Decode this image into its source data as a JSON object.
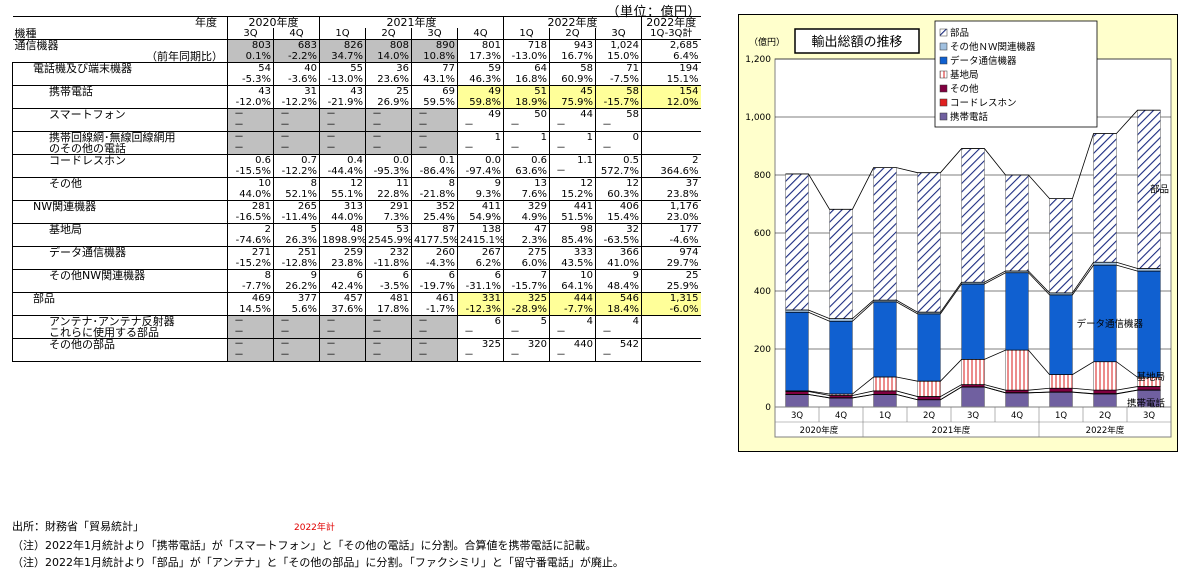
{
  "table": {
    "unit": "（単位：億円）",
    "header_year_label": "年度",
    "header_item_label": "機種",
    "years": [
      {
        "label": "2020年度",
        "span": 2
      },
      {
        "label": "2021年度",
        "span": 4
      },
      {
        "label": "2022年度",
        "span": 3
      },
      {
        "label": "2022年度",
        "span": 1
      }
    ],
    "quarters": [
      "3Q",
      "4Q",
      "1Q",
      "2Q",
      "3Q",
      "4Q",
      "1Q",
      "2Q",
      "3Q",
      "1Q-3Q計"
    ],
    "rows": [
      {
        "indent": 0,
        "label": "通信機器",
        "label2": "（前年同期比）",
        "values": [
          "803",
          "683",
          "826",
          "808",
          "890",
          "801",
          "718",
          "943",
          "1,024",
          "2,685"
        ],
        "yoy": [
          "0.1%",
          "-2.2%",
          "34.7%",
          "14.0%",
          "10.8%",
          "17.3%",
          "-13.0%",
          "16.7%",
          "15.0%",
          "6.4%"
        ],
        "grey": [
          1,
          1,
          1,
          1,
          1,
          0,
          0,
          0,
          0,
          0
        ],
        "yel": [
          0,
          0,
          0,
          0,
          0,
          0,
          0,
          0,
          0,
          0
        ],
        "top": false
      },
      {
        "indent": 1,
        "label": "電話機及び端末機器",
        "label2": "",
        "values": [
          "54",
          "40",
          "55",
          "36",
          "77",
          "59",
          "64",
          "58",
          "71",
          "194"
        ],
        "yoy": [
          "-5.3%",
          "-3.6%",
          "-13.0%",
          "23.6%",
          "43.1%",
          "46.3%",
          "16.8%",
          "60.9%",
          "-7.5%",
          "15.1%"
        ],
        "grey": [
          0,
          0,
          0,
          0,
          0,
          0,
          0,
          0,
          0,
          0
        ],
        "yel": [
          0,
          0,
          0,
          0,
          0,
          0,
          0,
          0,
          0,
          0
        ],
        "top": true
      },
      {
        "indent": 2,
        "label": "携帯電話",
        "label2": "",
        "values": [
          "43",
          "31",
          "43",
          "25",
          "69",
          "49",
          "51",
          "45",
          "58",
          "154"
        ],
        "yoy": [
          "-12.0%",
          "-12.2%",
          "-21.9%",
          "26.9%",
          "59.5%",
          "59.8%",
          "18.9%",
          "75.9%",
          "-15.7%",
          "12.0%"
        ],
        "grey": [
          0,
          0,
          0,
          0,
          0,
          0,
          0,
          0,
          0,
          0
        ],
        "yel": [
          0,
          0,
          0,
          0,
          0,
          1,
          1,
          1,
          1,
          1
        ],
        "top": true
      },
      {
        "indent": 2,
        "label": "スマートフォン",
        "label2": "",
        "values": [
          "－",
          "－",
          "－",
          "－",
          "－",
          "49",
          "50",
          "44",
          "58",
          ""
        ],
        "yoy": [
          "－",
          "－",
          "－",
          "－",
          "－",
          "－",
          "－",
          "－",
          "－",
          ""
        ],
        "grey": [
          1,
          1,
          1,
          1,
          1,
          0,
          0,
          0,
          0,
          0
        ],
        "yel": [
          0,
          0,
          0,
          0,
          0,
          0,
          0,
          0,
          0,
          0
        ],
        "top": true
      },
      {
        "indent": 2,
        "label": "携帯回線網･無線回線網用",
        "label2": "のその他の電話",
        "values": [
          "－",
          "－",
          "－",
          "－",
          "－",
          "1",
          "1",
          "1",
          "0",
          ""
        ],
        "yoy": [
          "－",
          "－",
          "－",
          "－",
          "－",
          "－",
          "－",
          "－",
          "－",
          ""
        ],
        "grey": [
          1,
          1,
          1,
          1,
          1,
          0,
          0,
          0,
          0,
          0
        ],
        "yel": [
          0,
          0,
          0,
          0,
          0,
          0,
          0,
          0,
          0,
          0
        ],
        "top": true
      },
      {
        "indent": 2,
        "label": "コードレスホン",
        "label2": "",
        "values": [
          "0.6",
          "0.7",
          "0.4",
          "0.0",
          "0.1",
          "0.0",
          "0.6",
          "1.1",
          "0.5",
          "2"
        ],
        "yoy": [
          "-15.5%",
          "-12.2%",
          "-44.4%",
          "-95.3%",
          "-86.4%",
          "-97.4%",
          "63.6%",
          "－",
          "572.7%",
          "364.6%"
        ],
        "grey": [
          0,
          0,
          0,
          0,
          0,
          0,
          0,
          0,
          0,
          0
        ],
        "yel": [
          0,
          0,
          0,
          0,
          0,
          0,
          0,
          0,
          0,
          0
        ],
        "top": true
      },
      {
        "indent": 2,
        "label": "その他",
        "label2": "",
        "values": [
          "10",
          "8",
          "12",
          "11",
          "8",
          "9",
          "13",
          "12",
          "12",
          "37"
        ],
        "yoy": [
          "44.0%",
          "52.1%",
          "55.1%",
          "22.8%",
          "-21.8%",
          "9.3%",
          "7.6%",
          "15.2%",
          "60.3%",
          "23.8%"
        ],
        "grey": [
          0,
          0,
          0,
          0,
          0,
          0,
          0,
          0,
          0,
          0
        ],
        "yel": [
          0,
          0,
          0,
          0,
          0,
          0,
          0,
          0,
          0,
          0
        ],
        "top": true
      },
      {
        "indent": 1,
        "label": "NW関連機器",
        "label2": "",
        "values": [
          "281",
          "265",
          "313",
          "291",
          "352",
          "411",
          "329",
          "441",
          "406",
          "1,176"
        ],
        "yoy": [
          "-16.5%",
          "-11.4%",
          "44.0%",
          "7.3%",
          "25.4%",
          "54.9%",
          "4.9%",
          "51.5%",
          "15.4%",
          "23.0%"
        ],
        "grey": [
          0,
          0,
          0,
          0,
          0,
          0,
          0,
          0,
          0,
          0
        ],
        "yel": [
          0,
          0,
          0,
          0,
          0,
          0,
          0,
          0,
          0,
          0
        ],
        "top": true
      },
      {
        "indent": 2,
        "label": "基地局",
        "label2": "",
        "values": [
          "2",
          "5",
          "48",
          "53",
          "87",
          "138",
          "47",
          "98",
          "32",
          "177"
        ],
        "yoy": [
          "-74.6%",
          "26.3%",
          "1898.9%",
          "2545.9%",
          "4177.5%",
          "2415.1%",
          "2.3%",
          "85.4%",
          "-63.5%",
          "-4.6%"
        ],
        "grey": [
          0,
          0,
          0,
          0,
          0,
          0,
          0,
          0,
          0,
          0
        ],
        "yel": [
          0,
          0,
          0,
          0,
          0,
          0,
          0,
          0,
          0,
          0
        ],
        "top": true
      },
      {
        "indent": 2,
        "label": "データ通信機器",
        "label2": "",
        "values": [
          "271",
          "251",
          "259",
          "232",
          "260",
          "267",
          "275",
          "333",
          "366",
          "974"
        ],
        "yoy": [
          "-15.2%",
          "-12.8%",
          "23.8%",
          "-11.8%",
          "-4.3%",
          "6.2%",
          "6.0%",
          "43.5%",
          "41.0%",
          "29.7%"
        ],
        "grey": [
          0,
          0,
          0,
          0,
          0,
          0,
          0,
          0,
          0,
          0
        ],
        "yel": [
          0,
          0,
          0,
          0,
          0,
          0,
          0,
          0,
          0,
          0
        ],
        "top": true
      },
      {
        "indent": 2,
        "label": "その他NW関連機器",
        "label2": "",
        "values": [
          "8",
          "9",
          "6",
          "6",
          "6",
          "6",
          "7",
          "10",
          "9",
          "25"
        ],
        "yoy": [
          "-7.7%",
          "26.2%",
          "42.4%",
          "-3.5%",
          "-19.7%",
          "-31.1%",
          "-15.7%",
          "64.1%",
          "48.4%",
          "25.9%"
        ],
        "grey": [
          0,
          0,
          0,
          0,
          0,
          0,
          0,
          0,
          0,
          0
        ],
        "yel": [
          0,
          0,
          0,
          0,
          0,
          0,
          0,
          0,
          0,
          0
        ],
        "top": true
      },
      {
        "indent": 1,
        "label": "部品",
        "label2": "",
        "values": [
          "469",
          "377",
          "457",
          "481",
          "461",
          "331",
          "325",
          "444",
          "546",
          "1,315"
        ],
        "yoy": [
          "14.5%",
          "5.6%",
          "37.6%",
          "17.8%",
          "-1.7%",
          "-12.3%",
          "-28.9%",
          "-7.7%",
          "18.4%",
          "-6.0%"
        ],
        "grey": [
          0,
          0,
          0,
          0,
          0,
          0,
          0,
          0,
          0,
          0
        ],
        "yel": [
          0,
          0,
          0,
          0,
          0,
          1,
          1,
          1,
          1,
          1
        ],
        "top": true
      },
      {
        "indent": 2,
        "label": "アンテナ･アンテナ反射器",
        "label2": "これらに使用する部品",
        "values": [
          "－",
          "－",
          "－",
          "－",
          "－",
          "6",
          "5",
          "4",
          "4",
          ""
        ],
        "yoy": [
          "－",
          "－",
          "－",
          "－",
          "－",
          "－",
          "－",
          "－",
          "－",
          ""
        ],
        "grey": [
          1,
          1,
          1,
          1,
          1,
          0,
          0,
          0,
          0,
          0
        ],
        "yel": [
          0,
          0,
          0,
          0,
          0,
          0,
          0,
          0,
          0,
          0
        ],
        "top": true
      },
      {
        "indent": 2,
        "label": "その他の部品",
        "label2": "",
        "values": [
          "－",
          "－",
          "－",
          "－",
          "－",
          "325",
          "320",
          "440",
          "542",
          ""
        ],
        "yoy": [
          "－",
          "－",
          "－",
          "－",
          "－",
          "－",
          "－",
          "－",
          "－",
          ""
        ],
        "grey": [
          1,
          1,
          1,
          1,
          1,
          0,
          0,
          0,
          0,
          0
        ],
        "yel": [
          0,
          0,
          0,
          0,
          0,
          0,
          0,
          0,
          0,
          0
        ],
        "top": true
      }
    ]
  },
  "notes": {
    "source": "出所：財務省「貿易統計」",
    "source_red": "2022年計",
    "note1": "（注）2022年1月統計より「携帯電話」が「スマートフォン」と「その他の電話」に分割。合算値を携帯電話に記載。",
    "note2": "（注）2022年1月統計より「部品」が「アンテナ」と「その他の部品」に分割。「ファクシミリ」と「留守番電話」が廃止。"
  },
  "chart_data": {
    "type": "bar",
    "stacked": true,
    "title": "輸出総額の推移",
    "ylabel": "（億円）",
    "ylim": [
      0,
      1200
    ],
    "yticks": [
      0,
      200,
      400,
      600,
      800,
      1000,
      1200
    ],
    "ytick_labels": [
      "0",
      "200",
      "400",
      "600",
      "800",
      "1,000",
      "1,200"
    ],
    "grid": true,
    "legend_position": "top-right",
    "categories": [
      "3Q",
      "4Q",
      "1Q",
      "2Q",
      "3Q",
      "4Q",
      "1Q",
      "2Q",
      "3Q"
    ],
    "year_groups": [
      {
        "label": "2020年度",
        "count": 2
      },
      {
        "label": "2021年度",
        "count": 4
      },
      {
        "label": "2022年度",
        "count": 3
      }
    ],
    "series": [
      {
        "name": "携帯電話",
        "color": "#7060a0",
        "pattern": "solid",
        "values": [
          43,
          31,
          43,
          25,
          69,
          49,
          51,
          45,
          58
        ]
      },
      {
        "name": "コードレスホン",
        "color": "#e02020",
        "pattern": "solid",
        "values": [
          0.6,
          0.7,
          0.4,
          0.0,
          0.1,
          0.0,
          0.6,
          1.1,
          0.5
        ]
      },
      {
        "name": "その他",
        "color": "#800040",
        "pattern": "solid",
        "values": [
          10,
          8,
          12,
          11,
          8,
          9,
          13,
          12,
          12
        ]
      },
      {
        "name": "基地局",
        "color": "#e04040",
        "pattern": "vlines",
        "values": [
          2,
          5,
          48,
          53,
          87,
          138,
          47,
          98,
          32
        ]
      },
      {
        "name": "データ通信機器",
        "color": "#1060d0",
        "pattern": "solid",
        "values": [
          271,
          251,
          259,
          232,
          260,
          267,
          275,
          333,
          366
        ]
      },
      {
        "name": "その他ＮＷ関連機器",
        "color": "#a0c0e0",
        "pattern": "solid",
        "values": [
          8,
          9,
          6,
          6,
          6,
          6,
          7,
          10,
          9
        ]
      },
      {
        "name": "部品",
        "color": "#1a2a80",
        "pattern": "diag",
        "values": [
          469,
          377,
          457,
          481,
          461,
          331,
          325,
          444,
          546
        ]
      }
    ],
    "legend_order": [
      "部品",
      "その他ＮＷ関連機器",
      "データ通信機器",
      "基地局",
      "その他",
      "コードレスホン",
      "携帯電話"
    ],
    "annotations": [
      {
        "text": "部品",
        "series": "部品"
      },
      {
        "text": "データ通信機器",
        "series": "データ通信機器"
      },
      {
        "text": "基地局",
        "series": "基地局"
      },
      {
        "text": "携帯電話",
        "series": "携帯電話"
      }
    ]
  }
}
